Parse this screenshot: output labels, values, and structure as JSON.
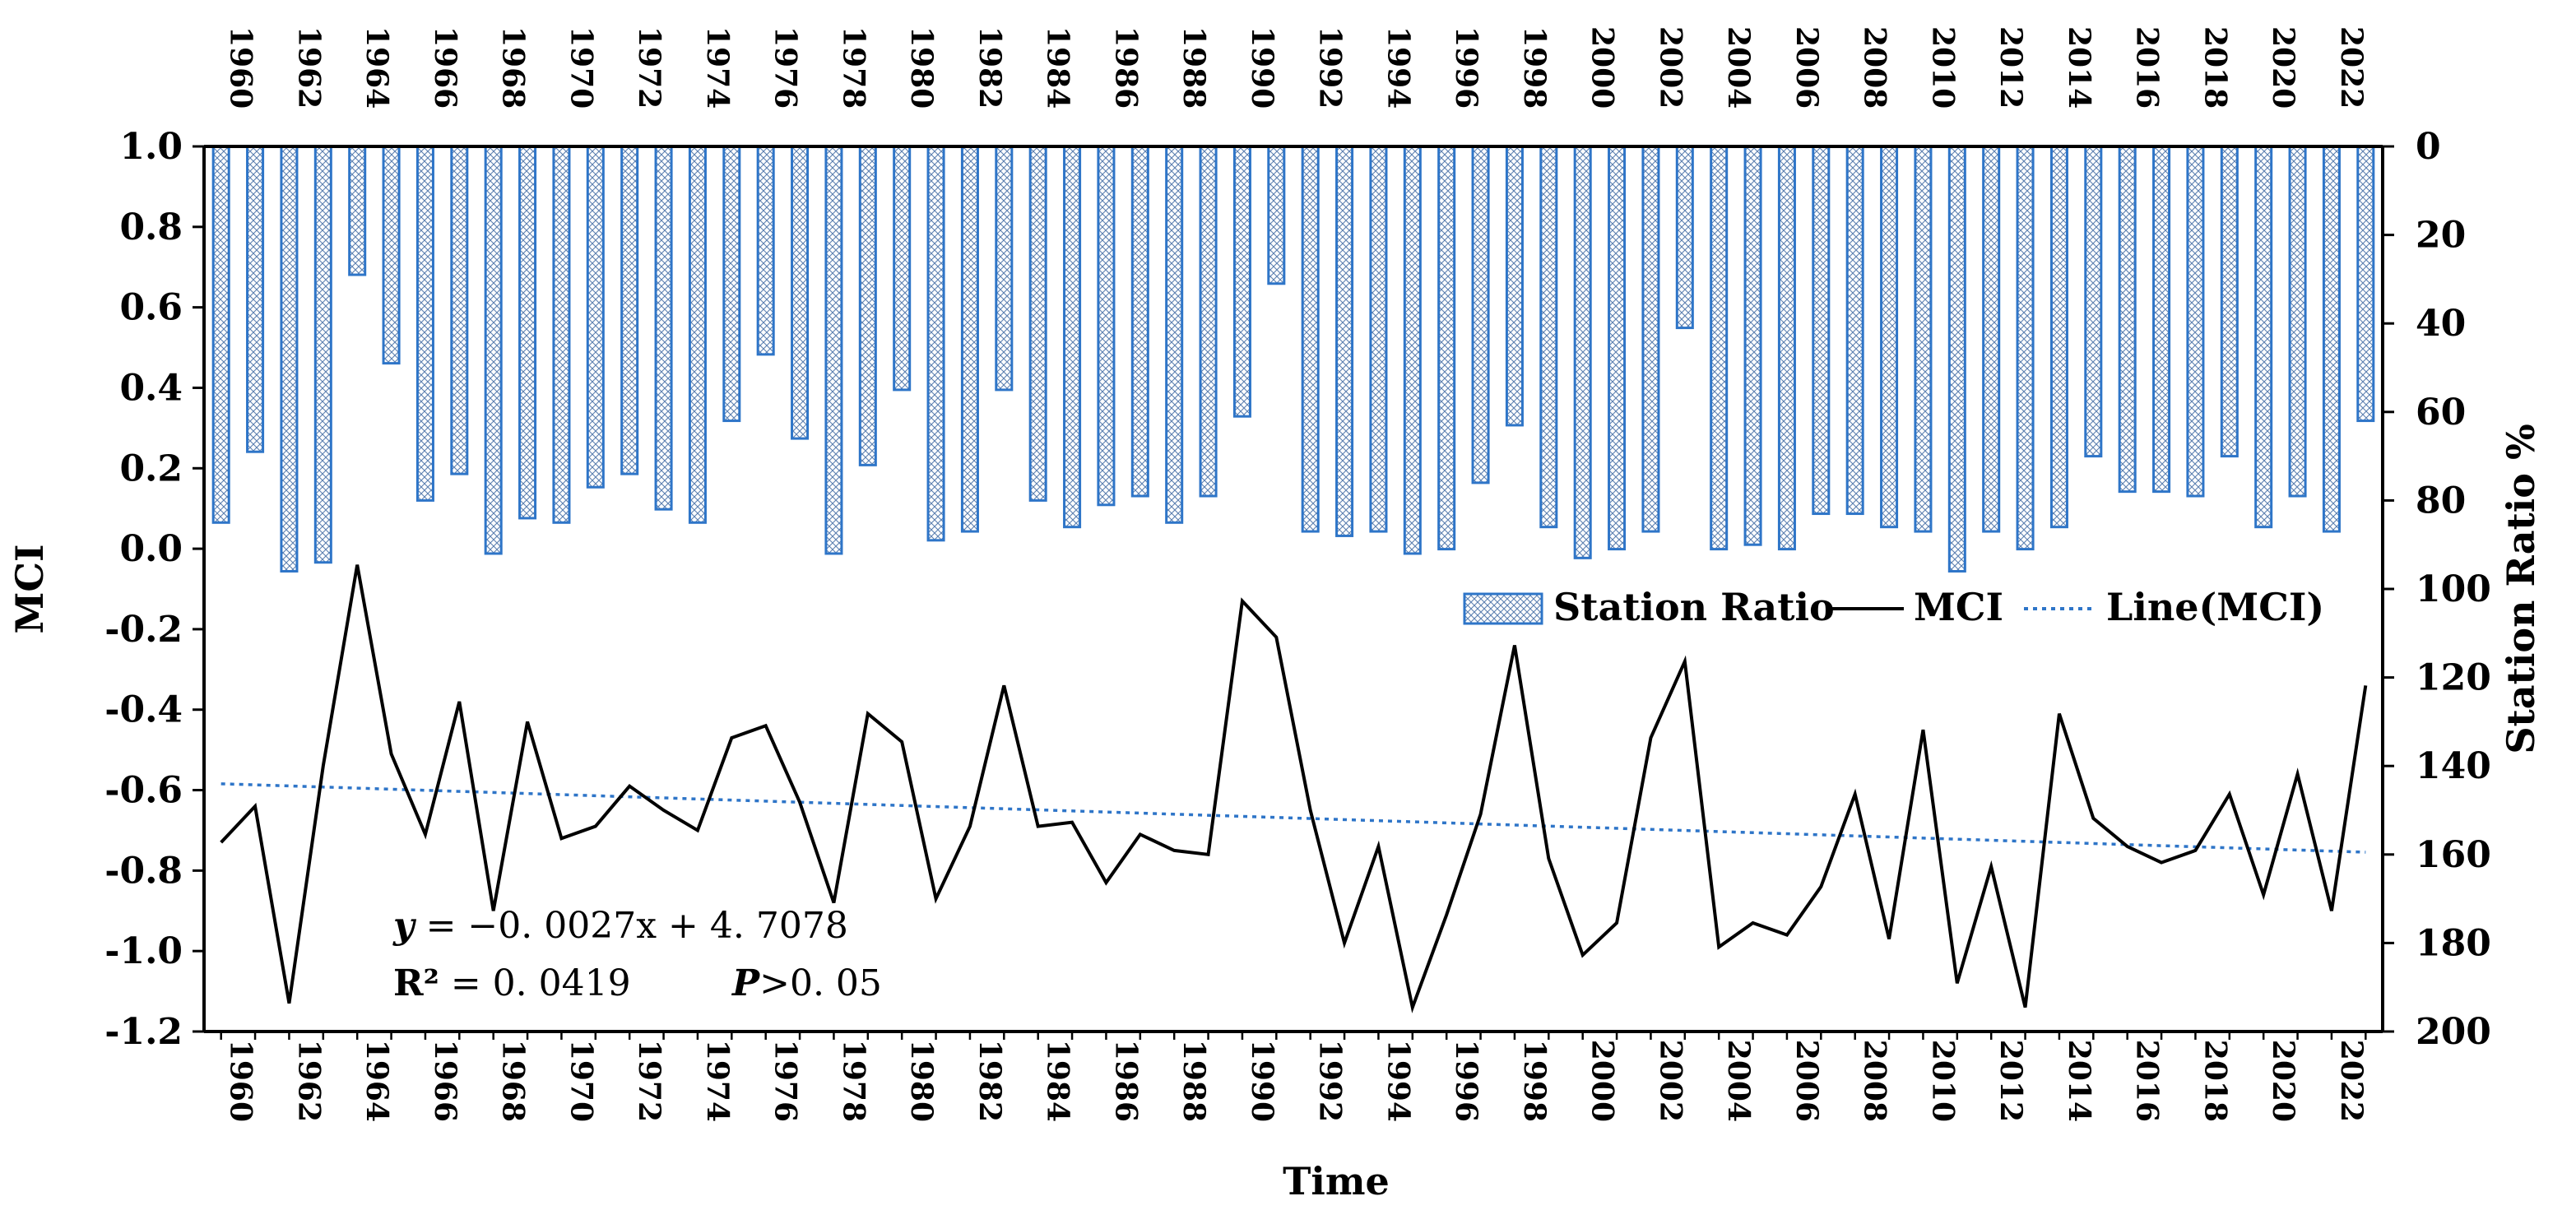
{
  "chart_data": {
    "type": "bar+line",
    "title": "",
    "xlabel": "Time",
    "ylabel_left": "MCI",
    "ylabel_right": "Station Ratio %",
    "ylim_left": [
      -1.2,
      1.0
    ],
    "ylim_right_inverted": [
      0,
      200
    ],
    "left_ticks": [
      "1.0",
      "0.8",
      "0.6",
      "0.4",
      "0.2",
      "0.0",
      "-0.2",
      "-0.4",
      "-0.6",
      "-0.8",
      "-1.0",
      "-1.2"
    ],
    "right_ticks": [
      "0",
      "20",
      "40",
      "60",
      "80",
      "100",
      "120",
      "140",
      "160",
      "180",
      "200"
    ],
    "x_tick_labels": [
      "1960",
      "1962",
      "1964",
      "1966",
      "1968",
      "1970",
      "1972",
      "1974",
      "1976",
      "1978",
      "1980",
      "1982",
      "1984",
      "1986",
      "1988",
      "1990",
      "1992",
      "1994",
      "1996",
      "1998",
      "2000",
      "2002",
      "2004",
      "2006",
      "2008",
      "2010",
      "2012",
      "2014",
      "2016",
      "2018",
      "2020",
      "2022"
    ],
    "years": [
      1960,
      1961,
      1962,
      1963,
      1964,
      1965,
      1966,
      1967,
      1968,
      1969,
      1970,
      1971,
      1972,
      1973,
      1974,
      1975,
      1976,
      1977,
      1978,
      1979,
      1980,
      1981,
      1982,
      1983,
      1984,
      1985,
      1986,
      1987,
      1988,
      1989,
      1990,
      1991,
      1992,
      1993,
      1994,
      1995,
      1996,
      1997,
      1998,
      1999,
      2000,
      2001,
      2002,
      2003,
      2004,
      2005,
      2006,
      2007,
      2008,
      2009,
      2010,
      2011,
      2012,
      2013,
      2014,
      2015,
      2016,
      2017,
      2018,
      2019,
      2020,
      2021,
      2022,
      2023
    ],
    "series": [
      {
        "name": "Station Ratio",
        "axis": "right",
        "type": "bar",
        "values": [
          85,
          69,
          96,
          94,
          29,
          49,
          80,
          74,
          92,
          84,
          85,
          77,
          74,
          82,
          85,
          62,
          47,
          66,
          92,
          72,
          55,
          89,
          87,
          55,
          80,
          86,
          81,
          79,
          85,
          79,
          61,
          31,
          87,
          88,
          87,
          92,
          91,
          76,
          63,
          86,
          93,
          91,
          87,
          41,
          91,
          90,
          91,
          83,
          83,
          86,
          87,
          96,
          87,
          91,
          86,
          70,
          78,
          78,
          79,
          70,
          86,
          79,
          87,
          62
        ],
        "color": "#2e75c8"
      },
      {
        "name": "MCI",
        "axis": "left",
        "type": "line",
        "values": [
          -0.73,
          -0.64,
          -1.13,
          -0.54,
          -0.04,
          -0.51,
          -0.71,
          -0.38,
          -0.9,
          -0.43,
          -0.72,
          -0.69,
          -0.59,
          -0.65,
          -0.7,
          -0.47,
          -0.44,
          -0.63,
          -0.88,
          -0.41,
          -0.48,
          -0.87,
          -0.69,
          -0.34,
          -0.69,
          -0.68,
          -0.83,
          -0.71,
          -0.75,
          -0.76,
          -0.13,
          -0.22,
          -0.65,
          -0.98,
          -0.74,
          -1.14,
          -0.91,
          -0.66,
          -0.24,
          -0.77,
          -1.01,
          -0.93,
          -0.47,
          -0.28,
          -0.99,
          -0.93,
          -0.96,
          -0.84,
          -0.61,
          -0.97,
          -0.45,
          -1.08,
          -0.79,
          -1.14,
          -0.41,
          -0.67,
          -0.74,
          -0.78,
          -0.75,
          -0.61,
          -0.86,
          -0.56,
          -0.9,
          -0.34
        ],
        "color": "#000000"
      },
      {
        "name": "Line(MCI)",
        "axis": "left",
        "type": "trendline",
        "equation": {
          "slope": -0.0027,
          "intercept": 4.7078
        },
        "color": "#2e75c8"
      }
    ],
    "legend": {
      "placement": "center-right",
      "entries": [
        "Station Ratio",
        "MCI",
        "Line(MCI)"
      ]
    },
    "annotations": {
      "equation_lhs": "y",
      "equation_rhs": " = −0. 0027x + 4. 7078",
      "r2_label": "R²",
      "r2_value": " = 0. 0419",
      "p_label": "P",
      "p_value": ">0. 05"
    }
  }
}
